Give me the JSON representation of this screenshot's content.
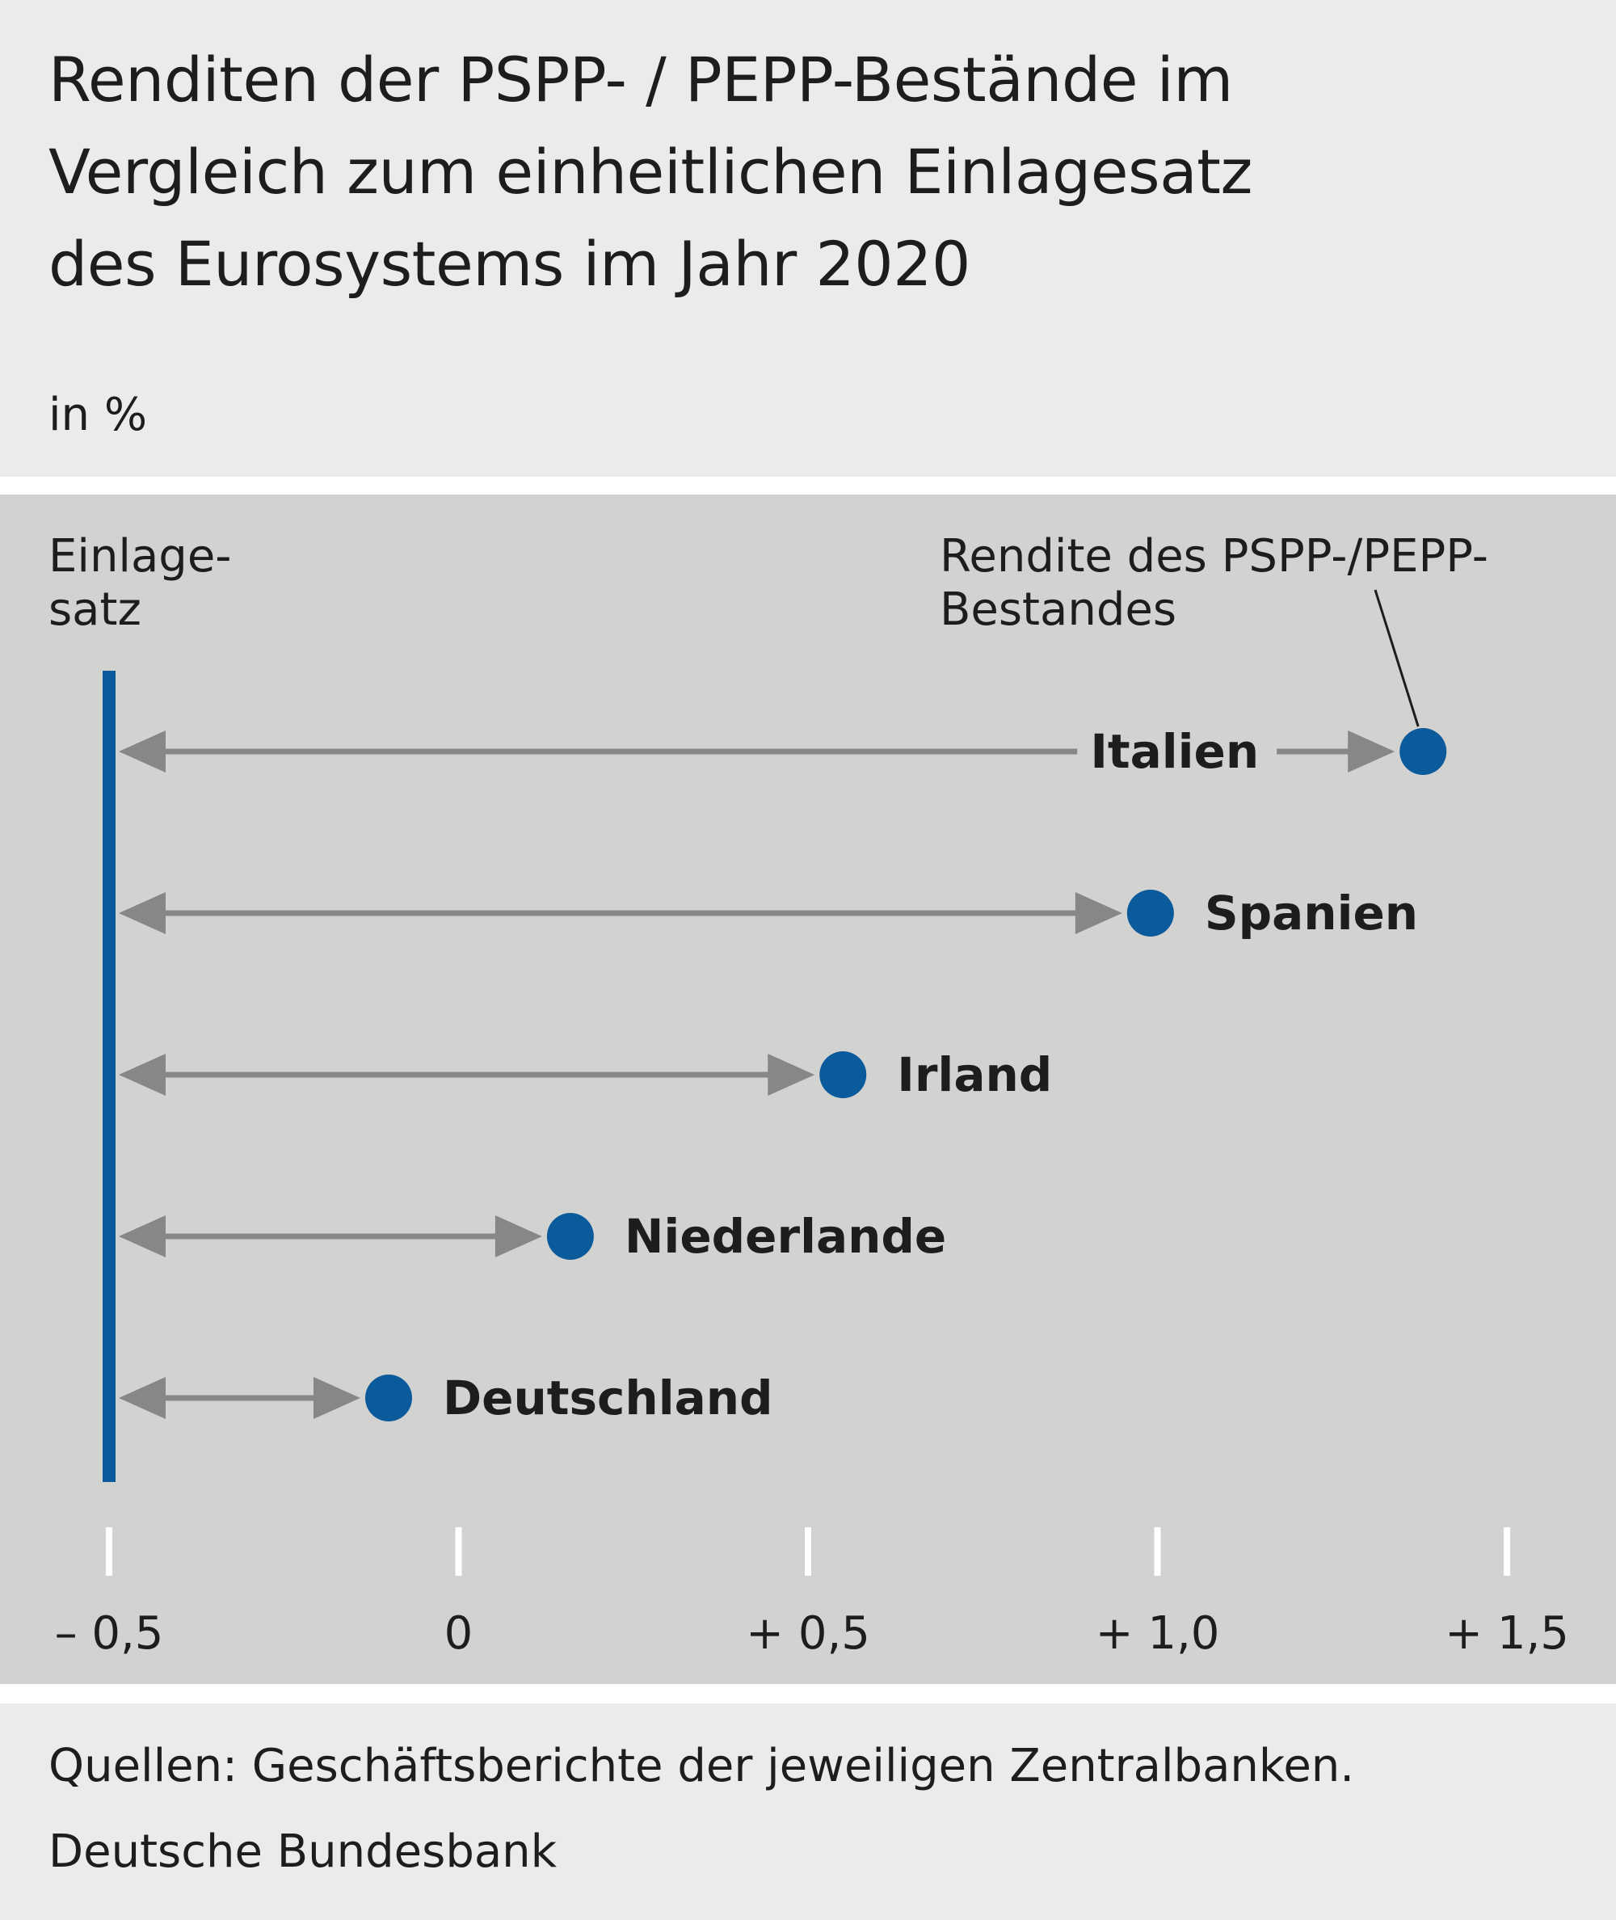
{
  "header": {
    "title_lines": [
      "Renditen der PSPP- / PEPP-Bestände im",
      "Vergleich zum einheitlichen Einlagesatz",
      "des Eurosystems im Jahr 2020"
    ],
    "unit": "in %"
  },
  "colors": {
    "header_bg": "#ebebeb",
    "plot_bg": "#d2d2d1",
    "deposit_line": "#0a5a9c",
    "marker": "#0a5a9c",
    "arrow": "#878787",
    "tick": "#ffffff",
    "text": "#1d1d1b"
  },
  "chart_data": {
    "type": "scatter",
    "orientation": "horizontal-dumbbell",
    "reference": {
      "label_lines": [
        "Einlage-",
        "satz"
      ],
      "value": -0.5
    },
    "marker_label_lines": [
      "Rendite des PSPP-/PEPP-",
      "Bestandes"
    ],
    "categories": [
      "Italien",
      "Spanien",
      "Irland",
      "Niederlande",
      "Deutschland"
    ],
    "values": [
      1.38,
      0.99,
      0.55,
      0.16,
      -0.1
    ],
    "label_position": [
      "inline-left",
      "right",
      "right",
      "right",
      "right"
    ],
    "xlim": [
      -0.5,
      1.5
    ],
    "x_ticks": [
      -0.5,
      0,
      0.5,
      1.0,
      1.5
    ],
    "x_tick_labels": [
      "– 0,5",
      "0",
      "+ 0,5",
      "+ 1,0",
      "+ 1,5"
    ],
    "grid": false
  },
  "footer": {
    "source": "Quellen: Geschäftsberichte der jeweiligen Zentralbanken.",
    "publisher": "Deutsche Bundesbank"
  }
}
